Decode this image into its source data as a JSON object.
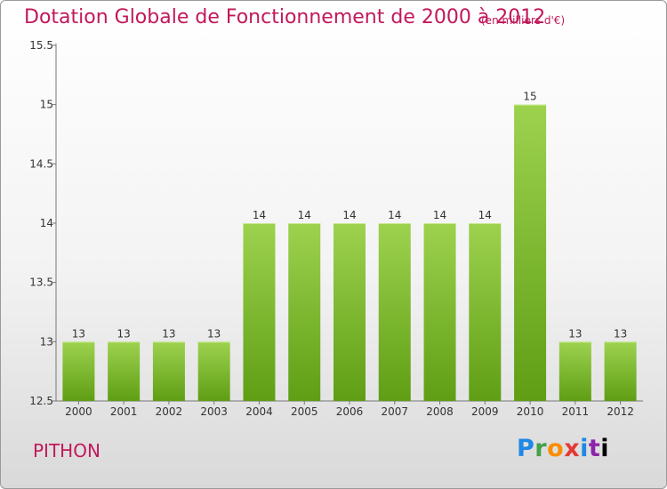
{
  "header": {
    "title": "Dotation Globale de Fonctionnement de 2000 à 2012",
    "subtitle": "(en milliers d'€)"
  },
  "footer": {
    "commune": "PITHON",
    "logo": [
      "P",
      "r",
      "o",
      "x",
      "i",
      "t",
      "i"
    ]
  },
  "colors": {
    "bar_light": "#9dd24f",
    "bar_dark": "#5f9e14",
    "title": "#c2185b"
  },
  "chart_data": {
    "type": "bar",
    "title": "Dotation Globale de Fonctionnement de 2000 à 2012",
    "subtitle": "(en milliers d'€)",
    "xlabel": "",
    "ylabel": "",
    "categories": [
      "2000",
      "2001",
      "2002",
      "2003",
      "2004",
      "2005",
      "2006",
      "2007",
      "2008",
      "2009",
      "2010",
      "2011",
      "2012"
    ],
    "values": [
      13,
      13,
      13,
      13,
      14,
      14,
      14,
      14,
      14,
      14,
      15,
      13,
      13
    ],
    "data_labels": [
      "13",
      "13",
      "13",
      "13",
      "14",
      "14",
      "14",
      "14",
      "14",
      "14",
      "15",
      "13",
      "13"
    ],
    "ylim": [
      12.5,
      15.5
    ],
    "yticks": [
      12.5,
      13,
      13.5,
      14,
      14.5,
      15,
      15.5
    ],
    "ytick_labels": [
      "12.5",
      "13",
      "13.5",
      "14",
      "14.5",
      "15",
      "15.5"
    ],
    "grid": false,
    "legend": "none"
  }
}
